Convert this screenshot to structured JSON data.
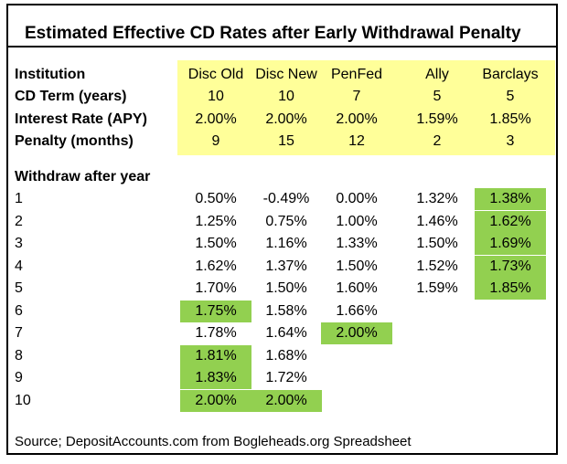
{
  "title": "Estimated Effective CD Rates after Early Withdrawal Penalty",
  "header_rows": [
    {
      "label": "Institution",
      "values": [
        "Disc Old",
        "Disc New",
        "PenFed",
        "Ally",
        "Barclays"
      ]
    },
    {
      "label": "CD Term (years)",
      "values": [
        "10",
        "10",
        "7",
        "5",
        "5"
      ]
    },
    {
      "label": "Interest Rate (APY)",
      "values": [
        "2.00%",
        "2.00%",
        "2.00%",
        "1.59%",
        "1.85%"
      ]
    },
    {
      "label": "Penalty (months)",
      "values": [
        "9",
        "15",
        "12",
        "2",
        "3"
      ]
    }
  ],
  "withdraw_label": "Withdraw after year",
  "rows": [
    {
      "year": "1",
      "values": [
        "0.50%",
        "-0.49%",
        "0.00%",
        "1.32%",
        "1.38%"
      ]
    },
    {
      "year": "2",
      "values": [
        "1.25%",
        "0.75%",
        "1.00%",
        "1.46%",
        "1.62%"
      ]
    },
    {
      "year": "3",
      "values": [
        "1.50%",
        "1.16%",
        "1.33%",
        "1.50%",
        "1.69%"
      ]
    },
    {
      "year": "4",
      "values": [
        "1.62%",
        "1.37%",
        "1.50%",
        "1.52%",
        "1.73%"
      ]
    },
    {
      "year": "5",
      "values": [
        "1.70%",
        "1.50%",
        "1.60%",
        "1.59%",
        "1.85%"
      ]
    },
    {
      "year": "6",
      "values": [
        "1.75%",
        "1.58%",
        "1.66%",
        "",
        ""
      ]
    },
    {
      "year": "7",
      "values": [
        "1.78%",
        "1.64%",
        "2.00%",
        "",
        ""
      ]
    },
    {
      "year": "8",
      "values": [
        "1.81%",
        "1.68%",
        "",
        "",
        ""
      ]
    },
    {
      "year": "9",
      "values": [
        "1.83%",
        "1.72%",
        "",
        "",
        ""
      ]
    },
    {
      "year": "10",
      "values": [
        "2.00%",
        "2.00%",
        "",
        "",
        ""
      ]
    }
  ],
  "source": "Source; DepositAccounts.com from Bogleheads.org Spreadsheet",
  "colors": {
    "header_fill": "#ffff99",
    "highlight_fill": "#92d050"
  }
}
